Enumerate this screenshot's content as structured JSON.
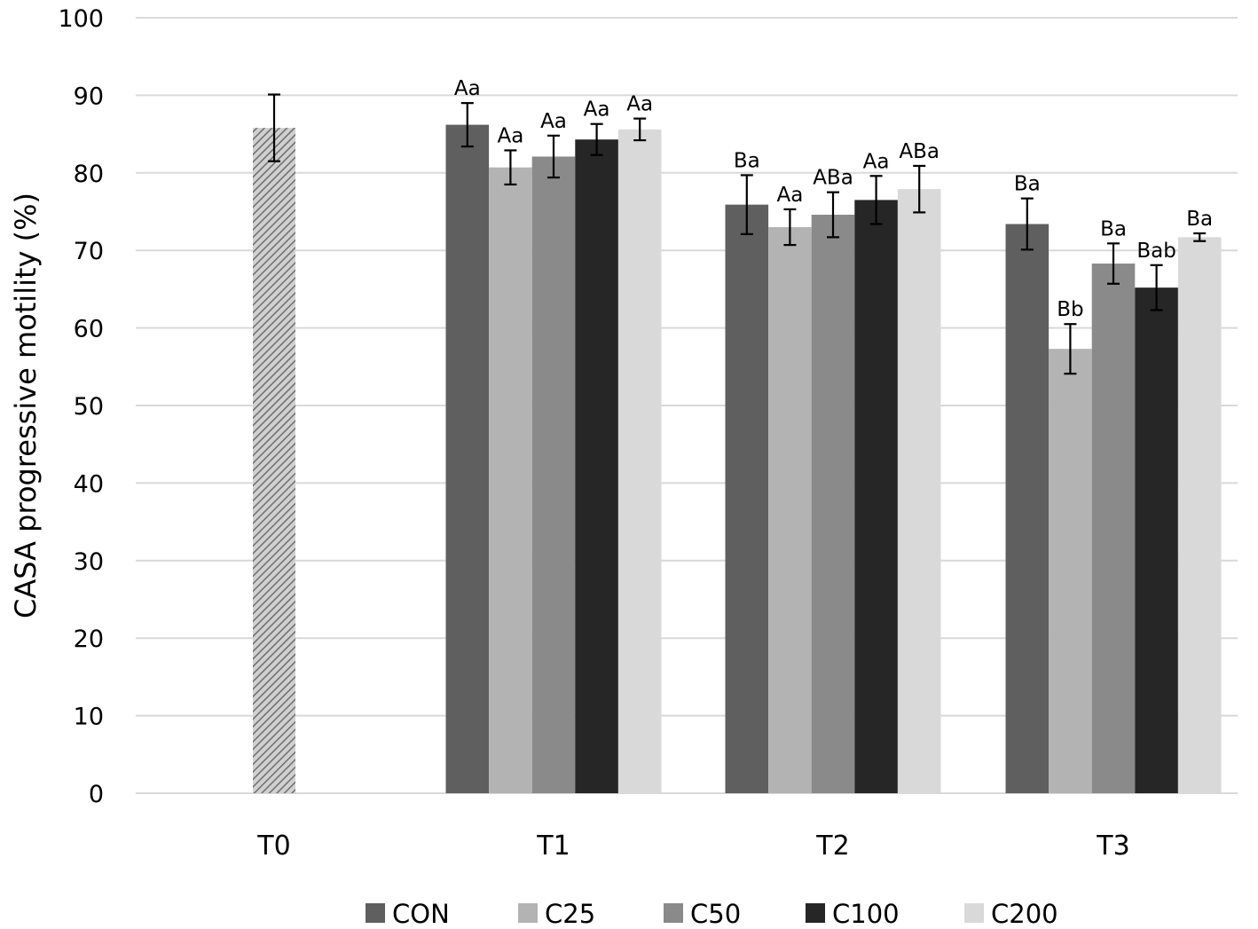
{
  "chart_data": {
    "type": "bar",
    "title": "",
    "xlabel": "",
    "ylabel": "CASA progressive motility (%)",
    "ylim": [
      0,
      100
    ],
    "yticks": [
      0,
      10,
      20,
      30,
      40,
      50,
      60,
      70,
      80,
      90,
      100
    ],
    "grid": true,
    "legend_position": "bottom",
    "categories": [
      "T0",
      "T1",
      "T2",
      "T3"
    ],
    "baseline": {
      "category": "T0",
      "value": 85.8,
      "error": 4.3,
      "pattern": "hatched",
      "color": "#8c8c8c"
    },
    "series": [
      {
        "name": "CON",
        "color": "#5f5f5f",
        "values": [
          null,
          86.2,
          75.9,
          73.4
        ],
        "errors": [
          null,
          2.8,
          3.8,
          3.3
        ],
        "labels": [
          null,
          "Aa",
          "Ba",
          "Ba"
        ]
      },
      {
        "name": "C25",
        "color": "#b3b3b3",
        "values": [
          null,
          80.7,
          73.0,
          57.3
        ],
        "errors": [
          null,
          2.2,
          2.3,
          3.2
        ],
        "labels": [
          null,
          "Aa",
          "Aa",
          "Bb"
        ]
      },
      {
        "name": "C50",
        "color": "#8a8a8a",
        "values": [
          null,
          82.1,
          74.6,
          68.3
        ],
        "errors": [
          null,
          2.7,
          2.9,
          2.6
        ],
        "labels": [
          null,
          "Aa",
          "ABa",
          "Ba"
        ]
      },
      {
        "name": "C100",
        "color": "#262626",
        "values": [
          null,
          84.3,
          76.5,
          65.2
        ],
        "errors": [
          null,
          2.0,
          3.1,
          2.9
        ],
        "labels": [
          null,
          "Aa",
          "Aa",
          "Bab"
        ]
      },
      {
        "name": "C200",
        "color": "#d9d9d9",
        "values": [
          null,
          85.6,
          77.9,
          71.7
        ],
        "errors": [
          null,
          1.4,
          3.0,
          0.5
        ],
        "labels": [
          null,
          "Aa",
          "ABa",
          "Ba"
        ]
      }
    ]
  }
}
